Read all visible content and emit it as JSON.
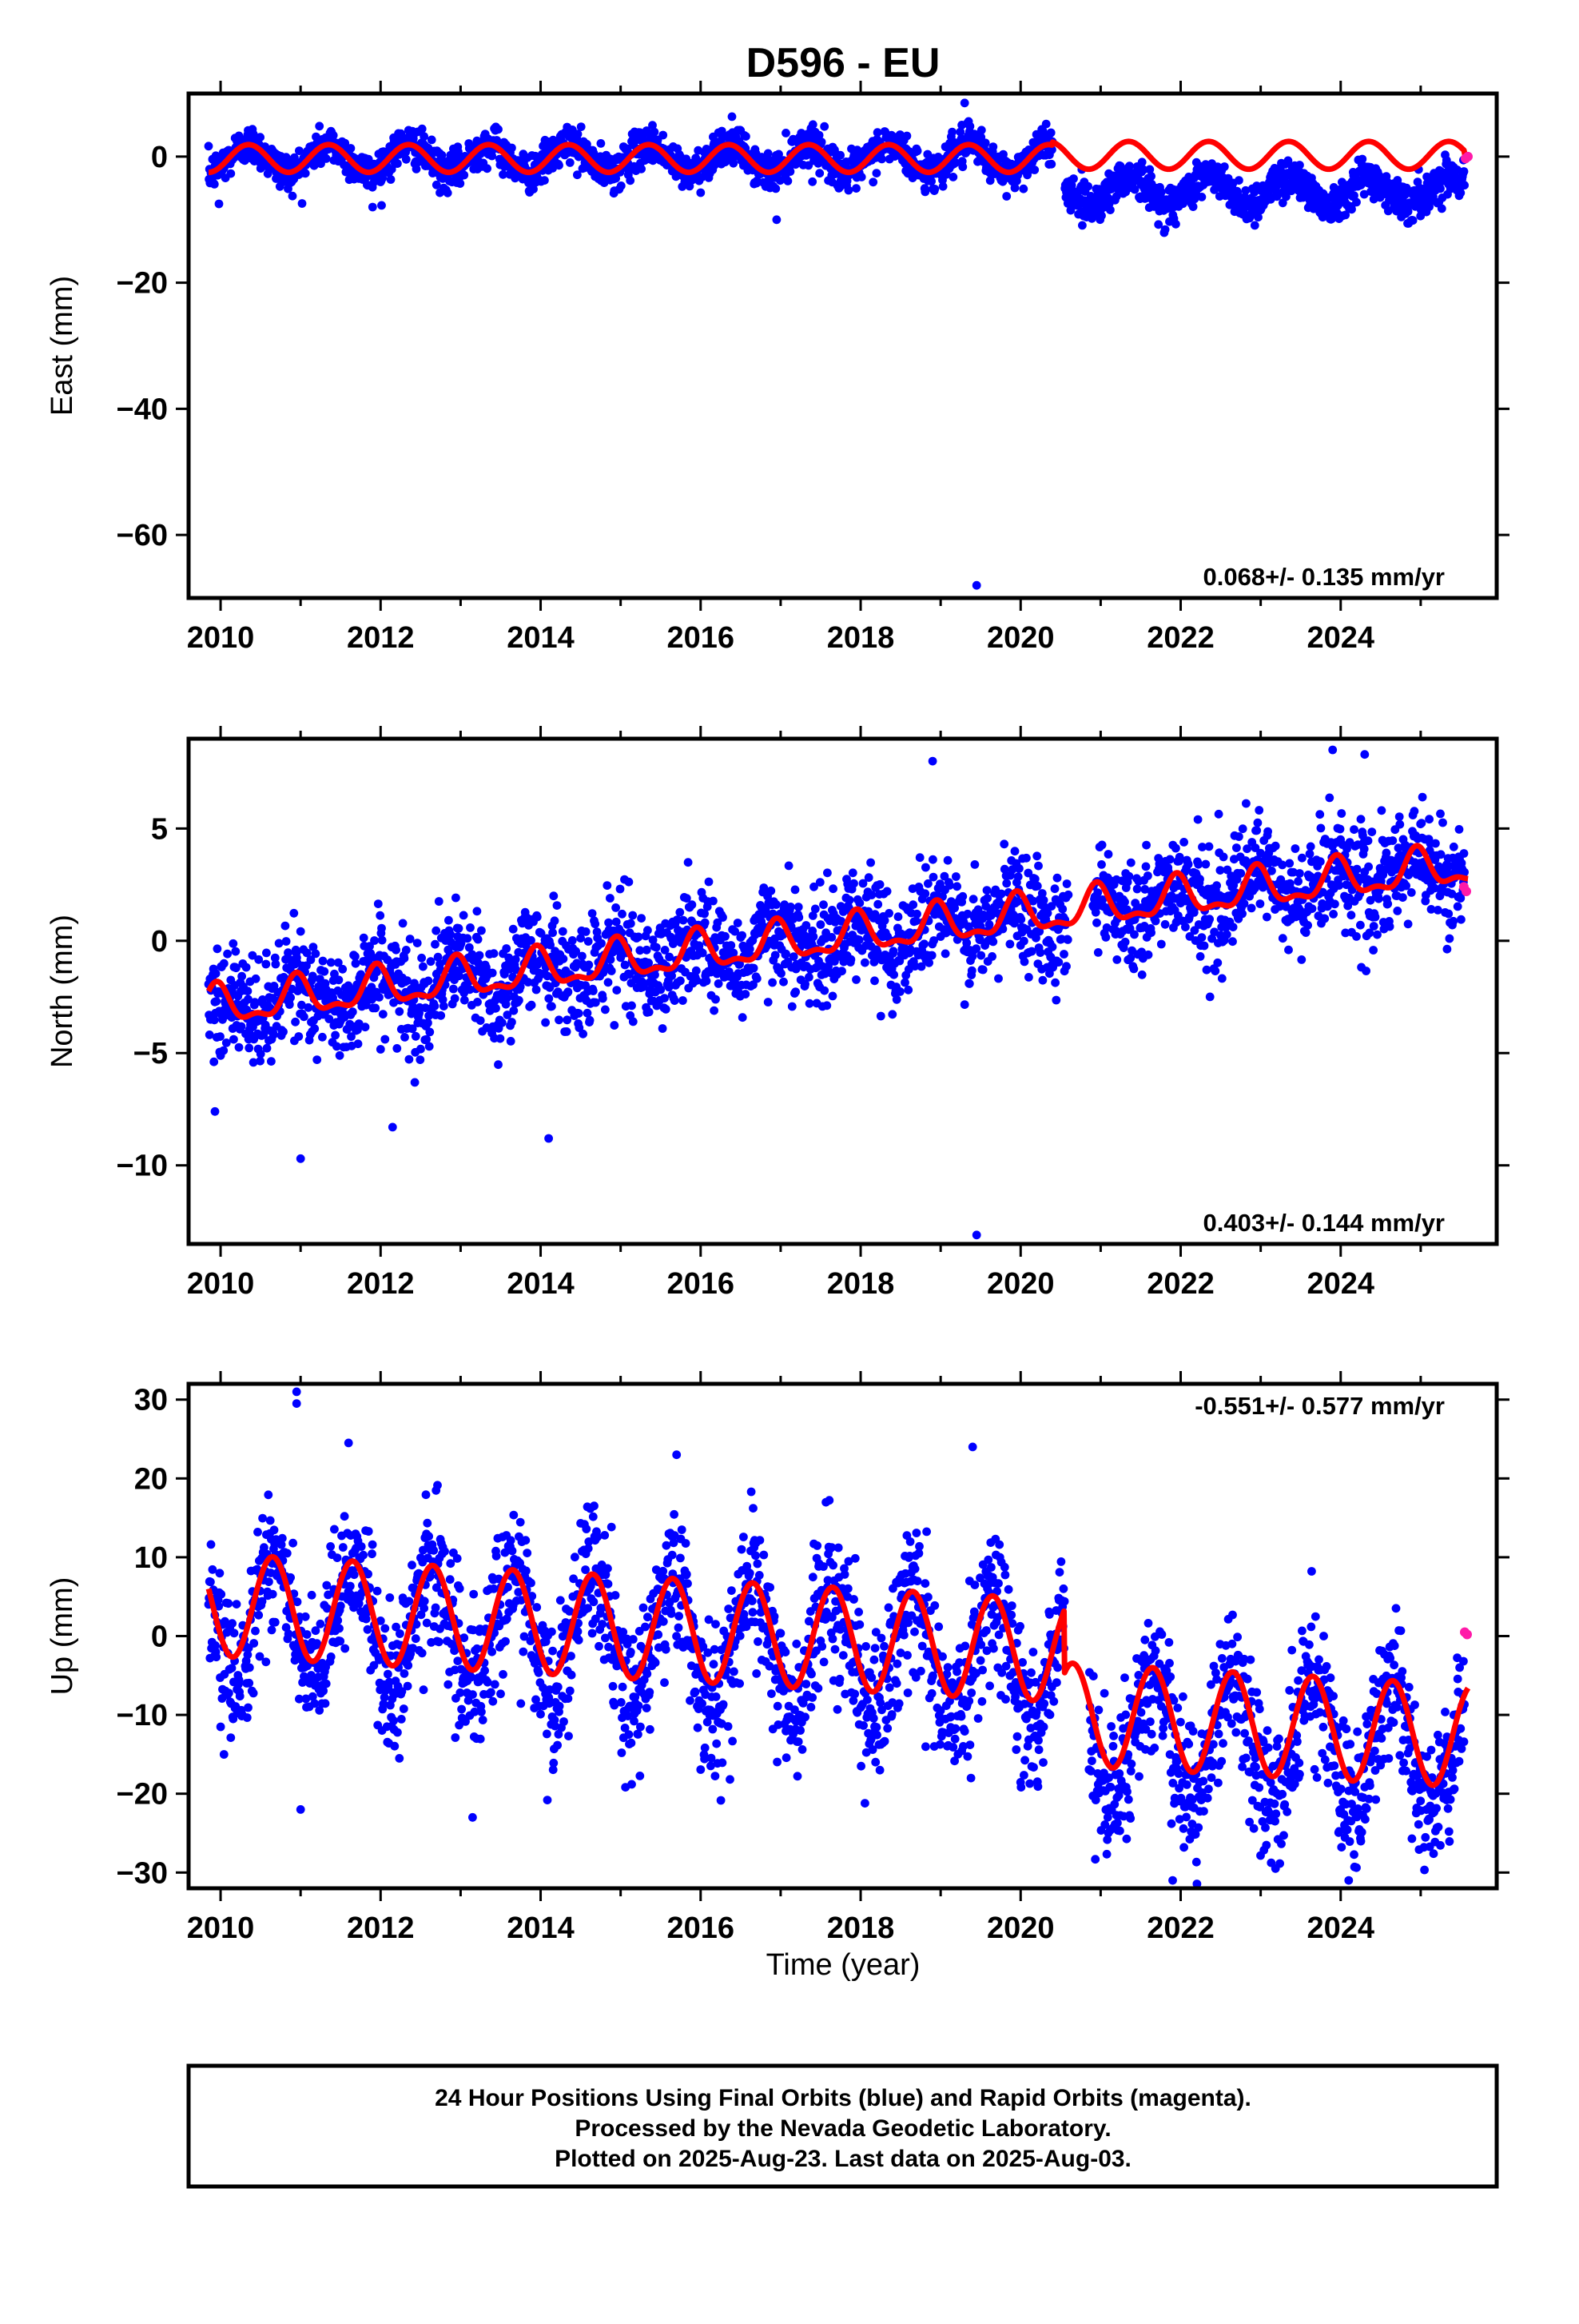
{
  "title": "D596 - EU",
  "x_axis_label": "Time (year)",
  "footer": {
    "line1": "24 Hour Positions Using Final Orbits (blue) and Rapid Orbits (magenta).",
    "line2": "Processed by the Nevada Geodetic Laboratory.",
    "line3": "Plotted on 2025-Aug-23. Last data on 2025-Aug-03."
  },
  "colors": {
    "final_orbits": "#0000ff",
    "rapid_orbits": "#ff1aa8",
    "model": "#ff0000",
    "axes": "#000000"
  },
  "chart_data": [
    {
      "type": "scatter",
      "component": "east",
      "ylabel": "East (mm)",
      "xlabel": "",
      "xlim": [
        2009.6,
        2025.95
      ],
      "ylim": [
        -70,
        10
      ],
      "x_ticks": [
        2010,
        2012,
        2014,
        2016,
        2018,
        2020,
        2022,
        2024
      ],
      "y_ticks": [
        0,
        -20,
        -40,
        -60
      ],
      "rate_text": "0.068+/- 0.135 mm/yr",
      "data_start": 2009.85,
      "data_end": 2025.55,
      "gap": [
        2020.4,
        2020.55
      ],
      "series": [
        {
          "name": "Final Orbits",
          "color": "#0000ff",
          "offset_segments": [
            [
              2009.85,
              0.0
            ],
            [
              2020.55,
              -5.0
            ]
          ],
          "annual_amplitude": 2.2,
          "annual_phase_year": 2010.35,
          "scatter_sd": 1.5,
          "outliers": [
            [
              2009.98,
              -7.5
            ],
            [
              2011.9,
              -8.0
            ],
            [
              2016.95,
              -10.0
            ],
            [
              2019.45,
              -68.0
            ],
            [
              2019.3,
              8.5
            ]
          ]
        },
        {
          "name": "Rapid Orbits",
          "color": "#ff1aa8",
          "points": [
            [
              2025.56,
              -0.3
            ],
            [
              2025.59,
              0.0
            ]
          ]
        }
      ],
      "model": {
        "name": "Fitted model",
        "color": "#ff0000",
        "segments": [
          [
            2009.85,
            2020.4,
            0.0
          ],
          [
            2020.4,
            2025.55,
            0.5
          ]
        ],
        "annual_amplitude": 2.2,
        "annual_phase_year": 2010.35
      }
    },
    {
      "type": "scatter",
      "component": "north",
      "ylabel": "North (mm)",
      "xlabel": "",
      "xlim": [
        2009.6,
        2025.95
      ],
      "ylim": [
        -13.5,
        9
      ],
      "x_ticks": [
        2010,
        2012,
        2014,
        2016,
        2018,
        2020,
        2022,
        2024
      ],
      "y_ticks": [
        5,
        0,
        -5,
        -10
      ],
      "rate_text": "0.403+/- 0.144 mm/yr",
      "data_start": 2009.85,
      "data_end": 2025.55,
      "gap": [
        2020.6,
        2020.9
      ],
      "series": [
        {
          "name": "Final Orbits",
          "color": "#0000ff",
          "trend_start_value": -3.0,
          "trend_rate": 0.403,
          "annual_amplitude": 0.8,
          "annual_phase_year": 2009.95,
          "scatter_sd": 1.2,
          "outliers": [
            [
              2011.0,
              -9.7
            ],
            [
              2014.1,
              -8.8
            ],
            [
              2012.15,
              -8.3
            ],
            [
              2019.45,
              -13.1
            ],
            [
              2018.9,
              8.0
            ],
            [
              2023.9,
              8.5
            ],
            [
              2024.3,
              8.3
            ],
            [
              2009.93,
              -7.6
            ]
          ]
        },
        {
          "name": "Rapid Orbits",
          "color": "#ff1aa8",
          "points": [
            [
              2025.54,
              2.4
            ],
            [
              2025.57,
              2.2
            ]
          ]
        }
      ],
      "model": {
        "name": "Fitted model",
        "color": "#ff0000",
        "trend_start_value": -3.0,
        "trend_rate": 0.403,
        "annual_amplitude": 0.8,
        "annual_phase_year": 2009.95,
        "semiannual_amplitude": 0.35
      }
    },
    {
      "type": "scatter",
      "component": "up",
      "ylabel": "Up (mm)",
      "xlabel": "Time (year)",
      "xlim": [
        2009.6,
        2025.95
      ],
      "ylim": [
        -32,
        32
      ],
      "x_ticks": [
        2010,
        2012,
        2014,
        2016,
        2018,
        2020,
        2022,
        2024
      ],
      "y_ticks": [
        30,
        20,
        10,
        0,
        -10,
        -20,
        -30
      ],
      "rate_text": "-0.551+/- 0.577 mm/yr",
      "data_start": 2009.85,
      "data_end": 2025.55,
      "gap": [
        2020.55,
        2020.85
      ],
      "series": [
        {
          "name": "Final Orbits",
          "color": "#0000ff",
          "offset_segments": [
            [
              2009.85,
              2.5
            ],
            [
              2020.85,
              -6.0
            ]
          ],
          "trend_rate": -0.551,
          "annual_amplitude": 6.5,
          "annual_phase_year": 2010.65,
          "scatter_sd": 4.5,
          "outliers": [
            [
              2010.95,
              31.0
            ],
            [
              2010.95,
              29.5
            ],
            [
              2011.0,
              -22.0
            ],
            [
              2013.15,
              -23.0
            ],
            [
              2011.6,
              24.5
            ],
            [
              2015.7,
              23.0
            ],
            [
              2019.4,
              24.0
            ],
            [
              2021.9,
              -31.0
            ],
            [
              2024.1,
              -31.0
            ]
          ]
        },
        {
          "name": "Rapid Orbits",
          "color": "#ff1aa8",
          "points": [
            [
              2025.55,
              0.5
            ],
            [
              2025.58,
              0.2
            ]
          ]
        }
      ],
      "model": {
        "name": "Fitted model",
        "color": "#ff0000",
        "start_value": 4.0,
        "trend_rate": -0.551,
        "annual_amplitude": 6.5,
        "annual_phase_year": 2010.65
      }
    }
  ]
}
